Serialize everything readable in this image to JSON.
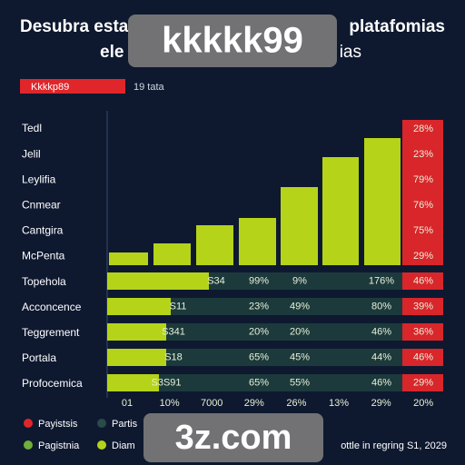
{
  "header": {
    "title_start": "Desubra esta",
    "title_end": "platafomias",
    "subtitle_start": "ele",
    "subtitle_end": "ias",
    "badge": "kkkkk99"
  },
  "tag": {
    "label": "Kkkkp89",
    "note": "19 tata"
  },
  "row_labels": [
    "Tedl",
    "Jelil",
    "Leylifia",
    "Cnmear",
    "Cantgira",
    "McPenta",
    "Topehola",
    "Acconcence",
    "Teggrement",
    "Portala",
    "Profocemica"
  ],
  "top_percent": [
    "28%",
    "23%",
    "79%",
    "76%",
    "75%",
    "29%"
  ],
  "rows": [
    {
      "bar": "S34",
      "cells": [
        "99%",
        "9%",
        "176%"
      ],
      "end": "46%"
    },
    {
      "bar": "S11",
      "cells": [
        "23%",
        "49%",
        "80%"
      ],
      "end": "39%"
    },
    {
      "bar": "S341",
      "cells": [
        "20%",
        "20%",
        "46%"
      ],
      "end": "36%"
    },
    {
      "bar": "S18",
      "cells": [
        "65%",
        "45%",
        "44%"
      ],
      "end": "46%"
    },
    {
      "bar": "S3S91",
      "cells": [
        "65%",
        "55%",
        "46%"
      ],
      "end": "29%"
    }
  ],
  "axis_labels": [
    "01",
    "10%",
    "7000",
    "29%",
    "26%",
    "13%",
    "29%",
    "20%"
  ],
  "legend": [
    "Payistsis",
    "Partis",
    "Pagistnia",
    "Diam"
  ],
  "footer": {
    "badge": "3z.com",
    "note": "ottle in regring S1, 2029"
  }
}
